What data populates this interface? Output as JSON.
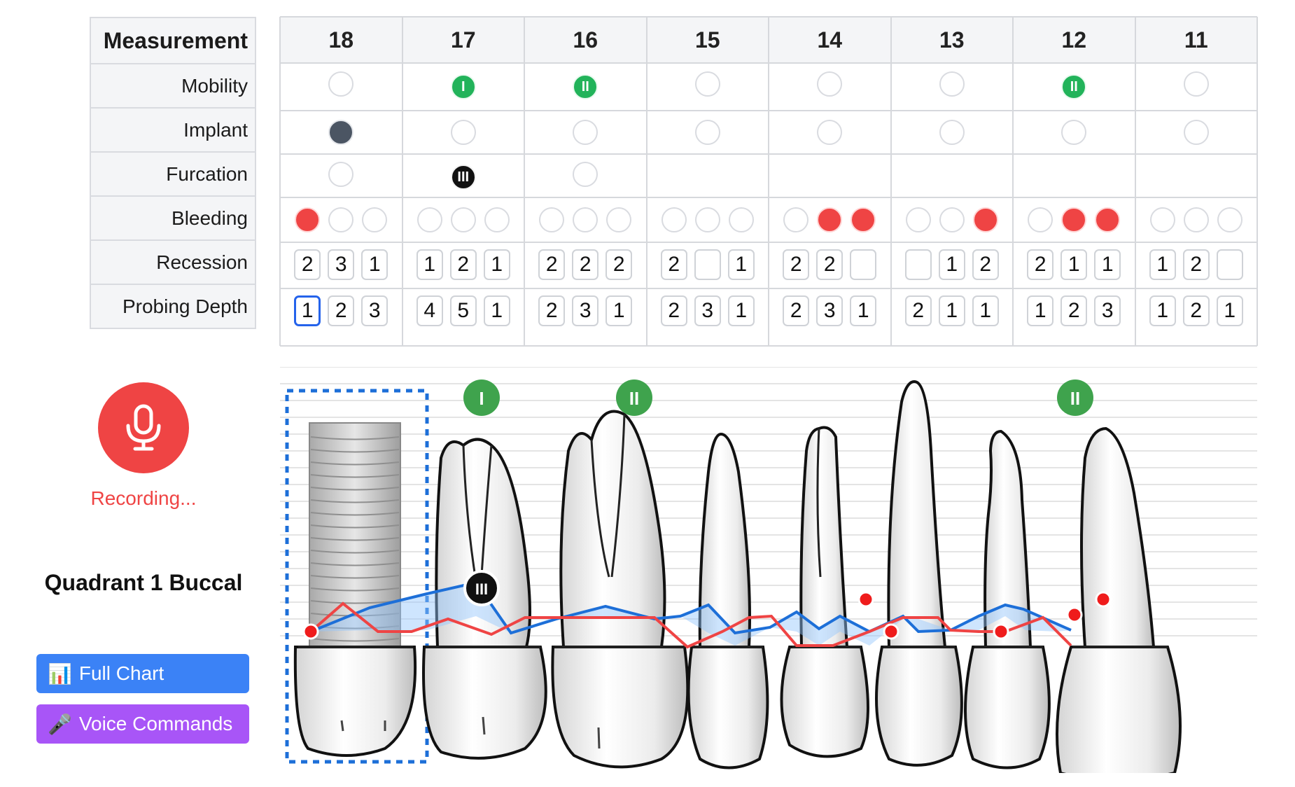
{
  "table": {
    "measurement_header": "Measurement",
    "row_labels": [
      "Mobility",
      "Implant",
      "Furcation",
      "Bleeding",
      "Recession",
      "Probing Depth"
    ],
    "teeth": [
      {
        "num": "18",
        "mobility": "",
        "implant": true,
        "furcation": "",
        "bleeding": [
          true,
          false,
          false
        ],
        "recession": [
          "2",
          "3",
          "1"
        ],
        "probing": [
          "1",
          "2",
          "3"
        ]
      },
      {
        "num": "17",
        "mobility": "I",
        "implant": false,
        "furcation": "III",
        "bleeding": [
          false,
          false,
          false
        ],
        "recession": [
          "1",
          "2",
          "1"
        ],
        "probing": [
          "4",
          "5",
          "1"
        ]
      },
      {
        "num": "16",
        "mobility": "II",
        "implant": false,
        "furcation": "",
        "bleeding": [
          false,
          false,
          false
        ],
        "recession": [
          "2",
          "2",
          "2"
        ],
        "probing": [
          "2",
          "3",
          "1"
        ]
      },
      {
        "num": "15",
        "mobility": "",
        "implant": false,
        "furcation": null,
        "bleeding": [
          false,
          false,
          false
        ],
        "recession": [
          "2",
          "",
          "1"
        ],
        "probing": [
          "2",
          "3",
          "1"
        ]
      },
      {
        "num": "14",
        "mobility": "",
        "implant": false,
        "furcation": null,
        "bleeding": [
          false,
          true,
          true
        ],
        "recession": [
          "2",
          "2",
          ""
        ],
        "probing": [
          "2",
          "3",
          "1"
        ]
      },
      {
        "num": "13",
        "mobility": "",
        "implant": false,
        "furcation": null,
        "bleeding": [
          false,
          false,
          true
        ],
        "recession": [
          "",
          "1",
          "2"
        ],
        "probing": [
          "2",
          "1",
          "1"
        ]
      },
      {
        "num": "12",
        "mobility": "II",
        "implant": false,
        "furcation": null,
        "bleeding": [
          false,
          true,
          true
        ],
        "recession": [
          "2",
          "1",
          "1"
        ],
        "probing": [
          "1",
          "2",
          "3"
        ]
      },
      {
        "num": "11",
        "mobility": "",
        "implant": false,
        "furcation": null,
        "bleeding": [
          false,
          false,
          false
        ],
        "recession": [
          "1",
          "2",
          ""
        ],
        "probing": [
          "1",
          "2",
          "1"
        ]
      }
    ]
  },
  "recording": {
    "status": "Recording...",
    "icon": "microphone-icon"
  },
  "quadrant_label": "Quadrant 1 Buccal",
  "buttons": {
    "full_chart": {
      "icon": "📊",
      "label": "Full Chart"
    },
    "voice_commands": {
      "icon": "🎤",
      "label": "Voice Commands"
    }
  },
  "diagram": {
    "mobility_badges": [
      {
        "tooth": "17",
        "label": "I"
      },
      {
        "tooth": "16",
        "label": "II"
      },
      {
        "tooth": "12",
        "label": "II"
      }
    ],
    "furcation_badges": [
      {
        "tooth": "17",
        "label": "III"
      }
    ]
  },
  "colors": {
    "accent_blue": "#3b82f6",
    "bleeding_red": "#ef4444",
    "mobility_green": "#22b35a",
    "voice_purple": "#a855f7"
  }
}
